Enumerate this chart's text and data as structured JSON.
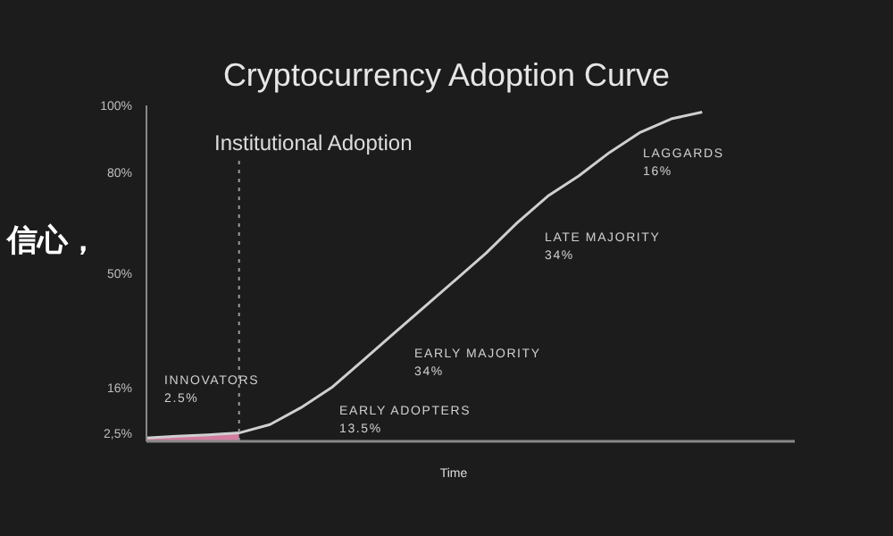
{
  "chart_data": {
    "type": "line",
    "title": "Cryptocurrency Adoption Curve",
    "xlabel": "Time",
    "categories": [
      null,
      null,
      null,
      null,
      null,
      null,
      null,
      null,
      null,
      null,
      null,
      null,
      null,
      null,
      null,
      null,
      null,
      null,
      null,
      null,
      null,
      null
    ],
    "ylim": [
      0,
      100
    ],
    "yticks": [
      {
        "value": 2.5,
        "label": "2,5%"
      },
      {
        "value": 16,
        "label": "16%"
      },
      {
        "value": 50,
        "label": "50%"
      },
      {
        "value": 80,
        "label": "80%"
      },
      {
        "value": 100,
        "label": "100%"
      }
    ],
    "tick_labels": "y",
    "grid": false,
    "marker": "none",
    "line_style": "solid",
    "series": [
      {
        "color": "#cfcfcf",
        "values": [
          1,
          1.5,
          1.9,
          2.5,
          5,
          10,
          16,
          24,
          32,
          40,
          48,
          56,
          65,
          73,
          79,
          86,
          92,
          96,
          98,
          null,
          null,
          null
        ]
      },
      {
        "type": "area",
        "color": "#e88ab0",
        "values": [
          1,
          1.5,
          1.9,
          2.5,
          null,
          null,
          null,
          null,
          null,
          null,
          null,
          null,
          null,
          null,
          null,
          null,
          null,
          null,
          null,
          null,
          null,
          null
        ]
      }
    ],
    "annotations": [
      "INNOVATORS\n2.5%",
      "EARLY ADOPTERS\n13.5%",
      "EARLY MAJORITY\n34%",
      "LATE MAJORITY\n34%",
      "LAGGARDS\n16%",
      "Institutional Adoption",
      "信心，"
    ]
  }
}
